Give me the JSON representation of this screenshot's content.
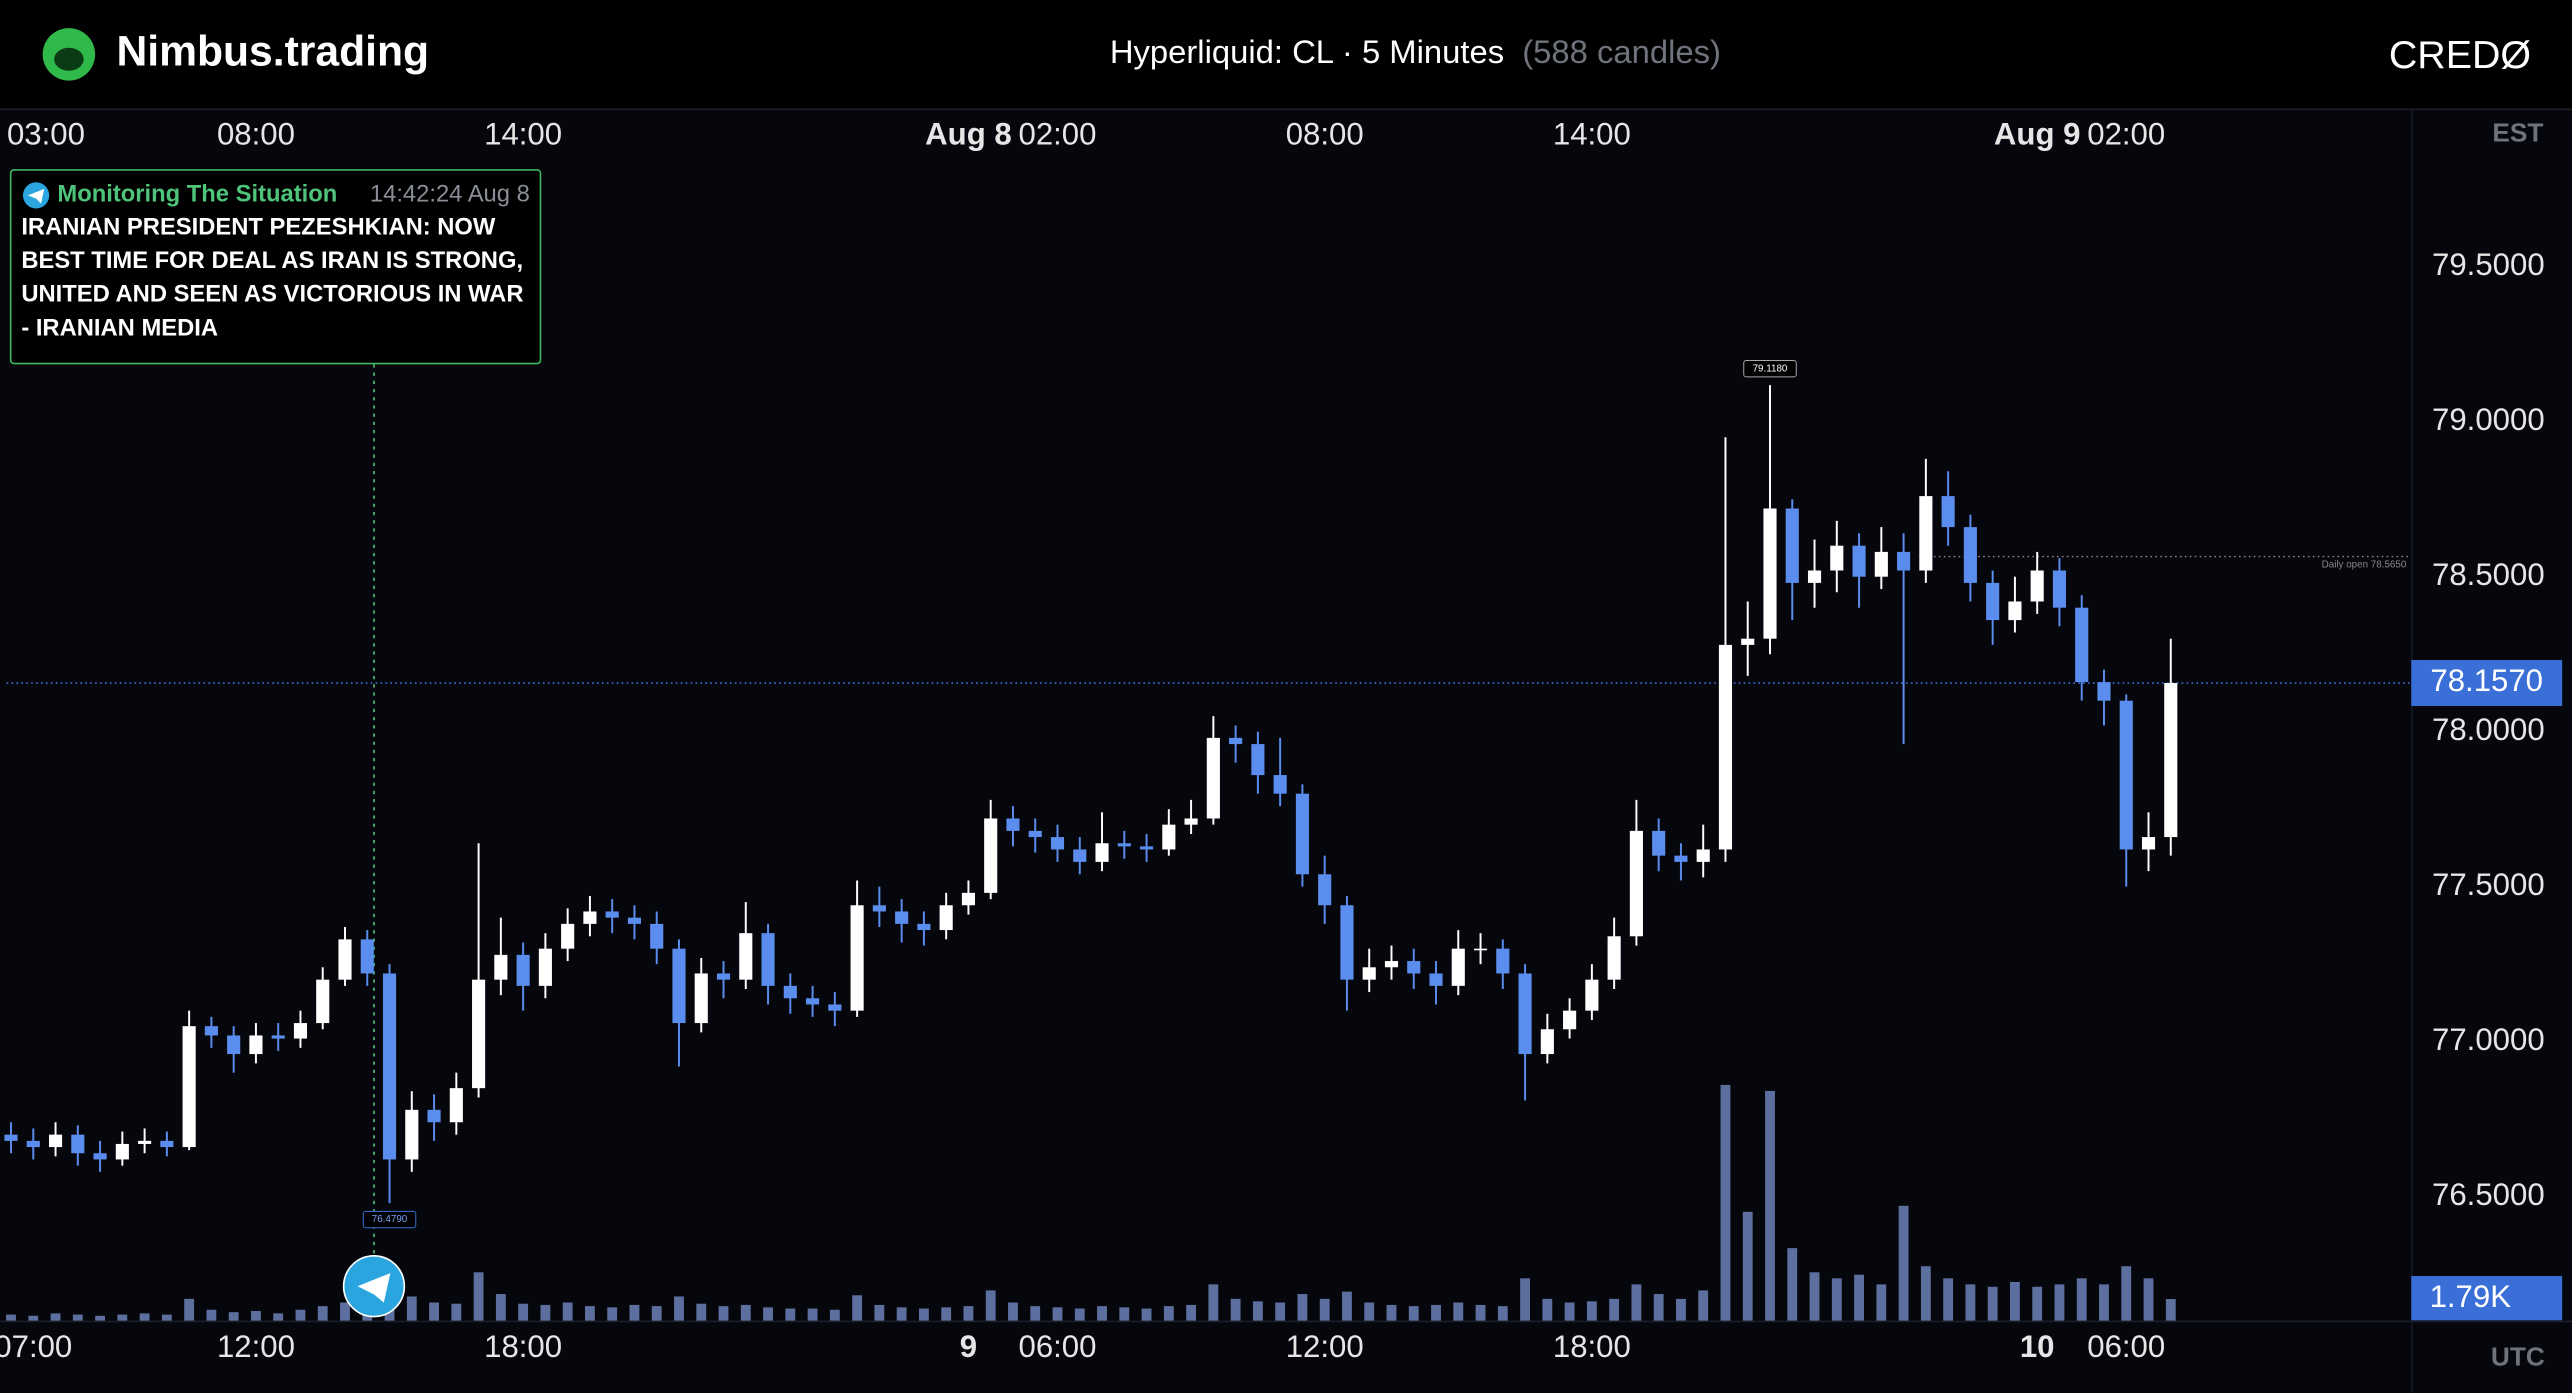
{
  "header": {
    "brand": "Nimbus.trading",
    "instrument": "Hyperliquid: CL · 5 Minutes",
    "candle_count": "(588 candles)",
    "logo_right": "CREDØ"
  },
  "news": {
    "source": "Monitoring The Situation",
    "time": "14:42:24 Aug 8",
    "body_lines": [
      "IRANIAN PRESIDENT PEZESHKIAN: NOW",
      "BEST TIME FOR DEAL AS IRAN IS STRONG,",
      "UNITED AND SEEN AS VICTORIOUS IN WAR",
      "- IRANIAN MEDIA"
    ]
  },
  "chart_data": {
    "type": "candlestick",
    "x_axis_label": "EST",
    "x2_axis_label": "UTC",
    "xlim": [
      2.4,
      56.4
    ],
    "xticks": [
      {
        "value": 3,
        "label": "03:00"
      },
      {
        "value": 8,
        "label": "08:00"
      },
      {
        "value": 14,
        "label": "14:00"
      },
      {
        "value": 24,
        "label": "Aug 8"
      },
      {
        "value": 26,
        "label": "02:00"
      },
      {
        "value": 32,
        "label": "08:00"
      },
      {
        "value": 38,
        "label": "14:00"
      },
      {
        "value": 48,
        "label": "Aug 9"
      },
      {
        "value": 50,
        "label": "02:00"
      }
    ],
    "x2ticks": [
      {
        "value": 3,
        "label": "07:00"
      },
      {
        "value": 8,
        "label": "12:00"
      },
      {
        "value": 14,
        "label": "18:00"
      },
      {
        "value": 24,
        "label": "9"
      },
      {
        "value": 26,
        "label": "06:00"
      },
      {
        "value": 32,
        "label": "12:00"
      },
      {
        "value": 38,
        "label": "18:00"
      },
      {
        "value": 48,
        "label": "10"
      },
      {
        "value": 50,
        "label": "06:00"
      }
    ],
    "ylim": [
      76.1,
      80.0
    ],
    "yticks": [
      {
        "value": 76.5,
        "label": "76.5000"
      },
      {
        "value": 77,
        "label": "77.0000"
      },
      {
        "value": 77.5,
        "label": "77.5000"
      },
      {
        "value": 78,
        "label": "78.0000"
      },
      {
        "value": 78.5,
        "label": "78.5000"
      },
      {
        "value": 79,
        "label": "79.0000"
      },
      {
        "value": 79.5,
        "label": "79.5000"
      }
    ],
    "up_color": "#ffffff",
    "down_color": "#5b8def",
    "volume_color": "#5d6f9e",
    "x": [
      2.5,
      3,
      3.5,
      4,
      4.5,
      5,
      5.5,
      6,
      6.5,
      7,
      7.5,
      8,
      8.5,
      9,
      9.5,
      10,
      10.5,
      11,
      11.5,
      12,
      12.5,
      13,
      13.5,
      14,
      14.5,
      15,
      15.5,
      16,
      16.5,
      17,
      17.5,
      18,
      18.5,
      19,
      19.5,
      20,
      20.5,
      21,
      21.5,
      22,
      22.5,
      23,
      23.5,
      24,
      24.5,
      25,
      25.5,
      26,
      26.5,
      27,
      27.5,
      28,
      28.5,
      29,
      29.5,
      30,
      30.5,
      31,
      31.5,
      32,
      32.5,
      33,
      33.5,
      34,
      34.5,
      35,
      35.5,
      36,
      36.5,
      37,
      37.5,
      38,
      38.5,
      39,
      39.5,
      40,
      40.5,
      41,
      41.5,
      42,
      42.5,
      43,
      43.5,
      44,
      44.5,
      45,
      45.5,
      46,
      46.5,
      47,
      47.5,
      48,
      48.5,
      49,
      49.5,
      50,
      50.5,
      51
    ],
    "open": [
      76.7,
      76.68,
      76.66,
      76.7,
      76.64,
      76.62,
      76.67,
      76.68,
      76.66,
      77.05,
      77.02,
      76.96,
      77.02,
      77.01,
      77.06,
      77.2,
      77.33,
      77.22,
      76.62,
      76.78,
      76.74,
      76.85,
      77.2,
      77.28,
      77.18,
      77.3,
      77.38,
      77.42,
      77.4,
      77.38,
      77.3,
      77.06,
      77.22,
      77.2,
      77.35,
      77.18,
      77.14,
      77.12,
      77.1,
      77.44,
      77.42,
      77.38,
      77.36,
      77.44,
      77.48,
      77.72,
      77.68,
      77.66,
      77.62,
      77.58,
      77.64,
      77.63,
      77.62,
      77.7,
      77.72,
      77.98,
      77.96,
      77.86,
      77.8,
      77.54,
      77.44,
      77.2,
      77.24,
      77.26,
      77.22,
      77.18,
      77.3,
      77.3,
      77.22,
      76.96,
      77.04,
      77.1,
      77.2,
      77.34,
      77.68,
      77.6,
      77.58,
      77.62,
      78.28,
      78.3,
      78.72,
      78.48,
      78.52,
      78.6,
      78.5,
      78.58,
      78.52,
      78.76,
      78.66,
      78.48,
      78.36,
      78.42,
      78.52,
      78.4,
      78.16,
      78.1,
      77.62,
      77.66
    ],
    "high": [
      76.74,
      76.72,
      76.74,
      76.73,
      76.68,
      76.71,
      76.72,
      76.71,
      77.1,
      77.08,
      77.05,
      77.06,
      77.06,
      77.1,
      77.24,
      77.37,
      77.36,
      77.25,
      76.84,
      76.83,
      76.9,
      77.64,
      77.4,
      77.32,
      77.35,
      77.43,
      77.47,
      77.46,
      77.44,
      77.42,
      77.33,
      77.27,
      77.26,
      77.45,
      77.38,
      77.22,
      77.18,
      77.16,
      77.52,
      77.5,
      77.46,
      77.42,
      77.48,
      77.52,
      77.78,
      77.76,
      77.72,
      77.7,
      77.66,
      77.74,
      77.68,
      77.67,
      77.75,
      77.78,
      78.05,
      78.02,
      78.0,
      77.98,
      77.83,
      77.6,
      77.47,
      77.3,
      77.31,
      77.3,
      77.26,
      77.36,
      77.35,
      77.33,
      77.25,
      77.09,
      77.14,
      77.25,
      77.4,
      77.78,
      77.72,
      77.64,
      77.7,
      78.95,
      78.42,
      79.118,
      78.75,
      78.62,
      78.68,
      78.64,
      78.66,
      78.64,
      78.88,
      78.84,
      78.7,
      78.52,
      78.5,
      78.58,
      78.56,
      78.44,
      78.2,
      78.12,
      77.74,
      78.3
    ],
    "low": [
      76.64,
      76.62,
      76.63,
      76.6,
      76.58,
      76.6,
      76.64,
      76.63,
      76.65,
      76.98,
      76.9,
      76.93,
      76.97,
      76.98,
      77.04,
      77.18,
      77.18,
      76.479,
      76.58,
      76.68,
      76.7,
      76.82,
      77.15,
      77.1,
      77.14,
      77.26,
      77.34,
      77.35,
      77.33,
      77.25,
      76.92,
      77.03,
      77.14,
      77.17,
      77.12,
      77.09,
      77.08,
      77.05,
      77.08,
      77.37,
      77.32,
      77.31,
      77.33,
      77.41,
      77.46,
      77.63,
      77.61,
      77.58,
      77.54,
      77.55,
      77.59,
      77.58,
      77.6,
      77.67,
      77.7,
      77.9,
      77.8,
      77.76,
      77.5,
      77.38,
      77.1,
      77.16,
      77.2,
      77.17,
      77.12,
      77.15,
      77.25,
      77.17,
      76.81,
      76.93,
      77.01,
      77.07,
      77.17,
      77.31,
      77.55,
      77.52,
      77.53,
      77.58,
      78.18,
      78.25,
      78.36,
      78.4,
      78.45,
      78.4,
      78.46,
      77.96,
      78.48,
      78.6,
      78.42,
      78.28,
      78.32,
      78.38,
      78.34,
      78.1,
      78.02,
      77.5,
      77.55,
      77.6
    ],
    "close": [
      76.68,
      76.66,
      76.7,
      76.64,
      76.62,
      76.67,
      76.68,
      76.66,
      77.05,
      77.02,
      76.96,
      77.02,
      77.01,
      77.06,
      77.2,
      77.33,
      77.22,
      76.62,
      76.78,
      76.74,
      76.85,
      77.2,
      77.28,
      77.18,
      77.3,
      77.38,
      77.42,
      77.4,
      77.38,
      77.3,
      77.06,
      77.22,
      77.2,
      77.35,
      77.18,
      77.14,
      77.12,
      77.1,
      77.44,
      77.42,
      77.38,
      77.36,
      77.44,
      77.48,
      77.72,
      77.68,
      77.66,
      77.62,
      77.58,
      77.64,
      77.63,
      77.62,
      77.7,
      77.72,
      77.98,
      77.96,
      77.86,
      77.8,
      77.54,
      77.44,
      77.2,
      77.24,
      77.26,
      77.22,
      77.18,
      77.3,
      77.3,
      77.22,
      76.96,
      77.04,
      77.1,
      77.2,
      77.34,
      77.68,
      77.6,
      77.58,
      77.62,
      78.28,
      78.3,
      78.72,
      78.48,
      78.52,
      78.6,
      78.5,
      78.58,
      78.52,
      78.76,
      78.66,
      78.48,
      78.36,
      78.42,
      78.52,
      78.4,
      78.16,
      78.1,
      77.62,
      77.66,
      78.157
    ],
    "volume_ylim": [
      0,
      100000
    ],
    "volume": [
      500,
      400,
      600,
      500,
      400,
      500,
      600,
      500,
      1800,
      900,
      700,
      800,
      600,
      900,
      1200,
      1500,
      1300,
      3200,
      2000,
      1500,
      1400,
      4000,
      2200,
      1400,
      1300,
      1500,
      1200,
      1100,
      1300,
      1200,
      2000,
      1400,
      1200,
      1300,
      1100,
      1000,
      1000,
      900,
      2100,
      1300,
      1100,
      1000,
      1100,
      1200,
      2500,
      1500,
      1200,
      1100,
      1000,
      1200,
      1100,
      1000,
      1200,
      1300,
      3000,
      1800,
      1600,
      1500,
      2200,
      1800,
      2400,
      1500,
      1300,
      1200,
      1300,
      1500,
      1300,
      1200,
      3500,
      1800,
      1500,
      1600,
      1800,
      3000,
      2200,
      1800,
      2500,
      19500,
      9000,
      19000,
      6000,
      4000,
      3500,
      3800,
      3000,
      9500,
      4500,
      3500,
      3000,
      2800,
      3200,
      2800,
      3000,
      3500,
      3000,
      4500,
      3500,
      1790
    ],
    "last_price": {
      "value": 78.157,
      "label": "78.1570"
    },
    "last_volume": {
      "value": 1790,
      "label": "1.79K"
    },
    "daily_open": {
      "value": 78.565,
      "label": "Daily open 78.5650"
    },
    "high_marker": {
      "value": 79.118,
      "label": "79.1180"
    },
    "low_marker": {
      "value": 76.479,
      "label": "76.4790"
    }
  }
}
